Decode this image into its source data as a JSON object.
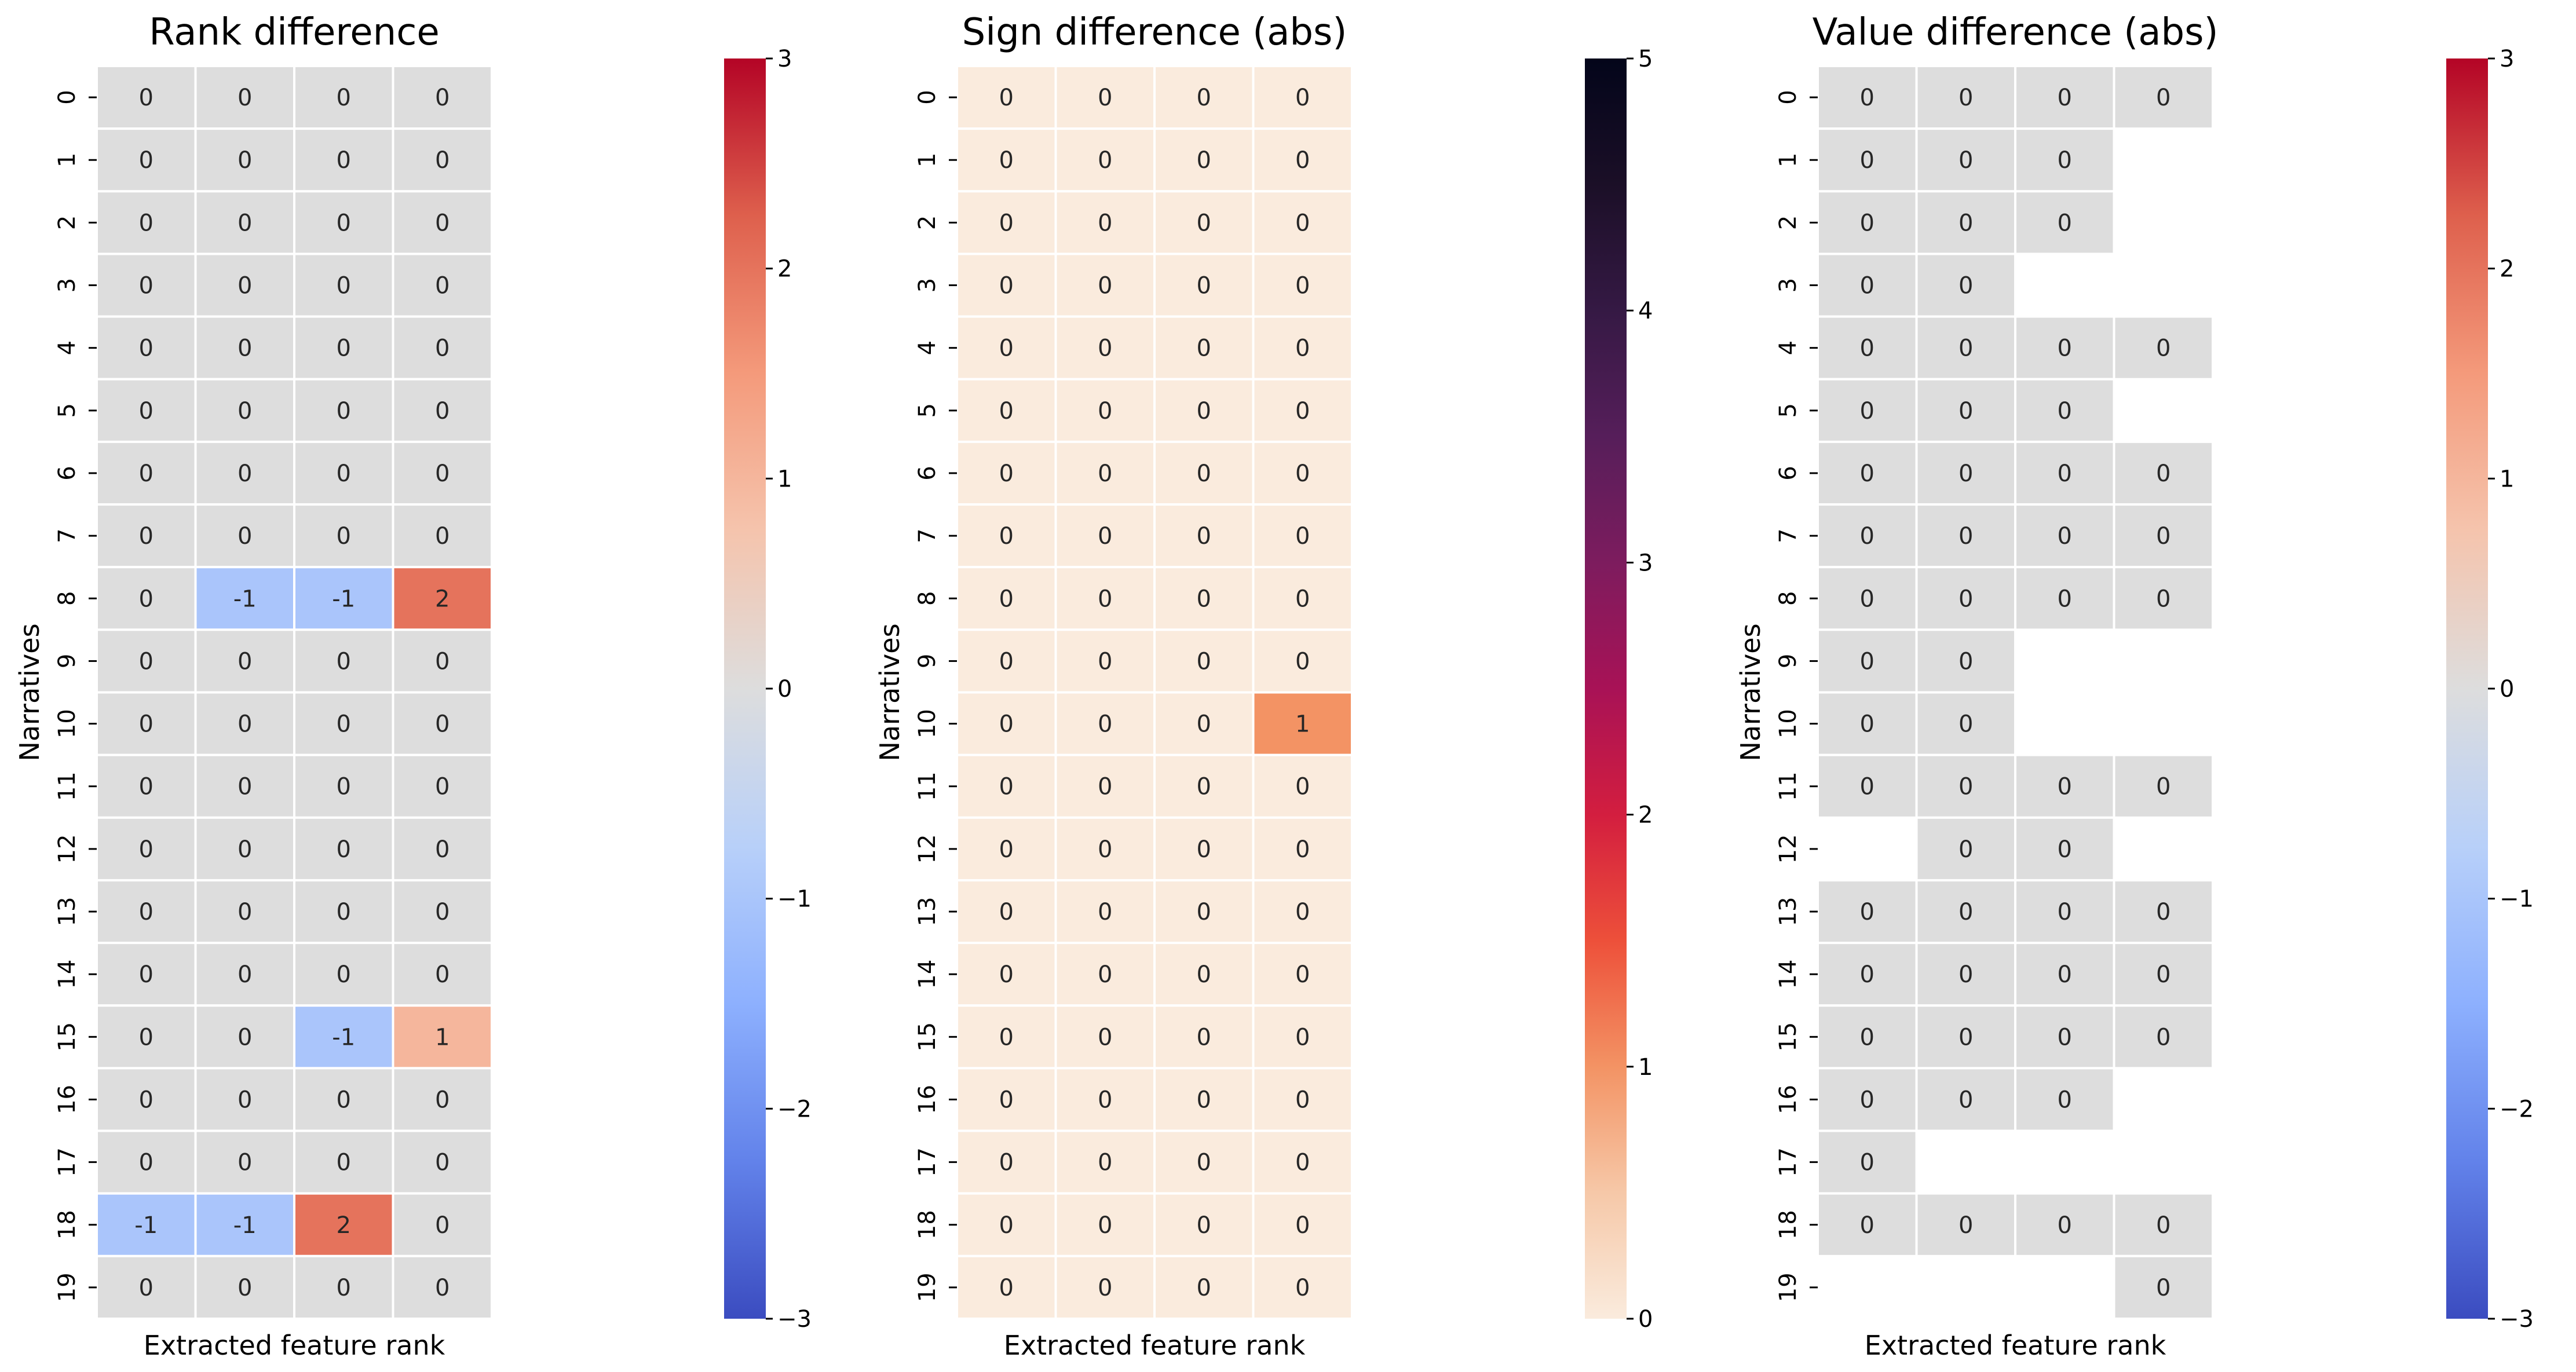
{
  "chart_data": [
    {
      "type": "heatmap",
      "title": "Rank difference",
      "xlabel": "Extracted feature rank",
      "ylabel": "Narratives",
      "xticks": [],
      "yticks": [
        "0",
        "1",
        "2",
        "3",
        "4",
        "5",
        "6",
        "7",
        "8",
        "9",
        "10",
        "11",
        "12",
        "13",
        "14",
        "15",
        "16",
        "17",
        "18",
        "19"
      ],
      "colormap": "coolwarm",
      "vmin": -3,
      "vmax": 3,
      "colorbar_ticks": [
        "−3",
        "−2",
        "−1",
        "0",
        "1",
        "2",
        "3"
      ],
      "colorbar_tick_values": [
        -3,
        -2,
        -1,
        0,
        1,
        2,
        3
      ],
      "values": [
        [
          0,
          0,
          0,
          0
        ],
        [
          0,
          0,
          0,
          0
        ],
        [
          0,
          0,
          0,
          0
        ],
        [
          0,
          0,
          0,
          0
        ],
        [
          0,
          0,
          0,
          0
        ],
        [
          0,
          0,
          0,
          0
        ],
        [
          0,
          0,
          0,
          0
        ],
        [
          0,
          0,
          0,
          0
        ],
        [
          0,
          -1,
          -1,
          2
        ],
        [
          0,
          0,
          0,
          0
        ],
        [
          0,
          0,
          0,
          0
        ],
        [
          0,
          0,
          0,
          0
        ],
        [
          0,
          0,
          0,
          0
        ],
        [
          0,
          0,
          0,
          0
        ],
        [
          0,
          0,
          0,
          0
        ],
        [
          0,
          0,
          -1,
          1
        ],
        [
          0,
          0,
          0,
          0
        ],
        [
          0,
          0,
          0,
          0
        ],
        [
          -1,
          -1,
          2,
          0
        ],
        [
          0,
          0,
          0,
          0
        ]
      ]
    },
    {
      "type": "heatmap",
      "title": "Sign difference (abs)",
      "xlabel": "Extracted feature rank",
      "ylabel": "Narratives",
      "xticks": [],
      "yticks": [
        "0",
        "1",
        "2",
        "3",
        "4",
        "5",
        "6",
        "7",
        "8",
        "9",
        "10",
        "11",
        "12",
        "13",
        "14",
        "15",
        "16",
        "17",
        "18",
        "19"
      ],
      "colormap": "rocket_r",
      "vmin": 0,
      "vmax": 5,
      "colorbar_ticks": [
        "0",
        "1",
        "2",
        "3",
        "4",
        "5"
      ],
      "colorbar_tick_values": [
        0,
        1,
        2,
        3,
        4,
        5
      ],
      "values": [
        [
          0,
          0,
          0,
          0
        ],
        [
          0,
          0,
          0,
          0
        ],
        [
          0,
          0,
          0,
          0
        ],
        [
          0,
          0,
          0,
          0
        ],
        [
          0,
          0,
          0,
          0
        ],
        [
          0,
          0,
          0,
          0
        ],
        [
          0,
          0,
          0,
          0
        ],
        [
          0,
          0,
          0,
          0
        ],
        [
          0,
          0,
          0,
          0
        ],
        [
          0,
          0,
          0,
          0
        ],
        [
          0,
          0,
          0,
          1
        ],
        [
          0,
          0,
          0,
          0
        ],
        [
          0,
          0,
          0,
          0
        ],
        [
          0,
          0,
          0,
          0
        ],
        [
          0,
          0,
          0,
          0
        ],
        [
          0,
          0,
          0,
          0
        ],
        [
          0,
          0,
          0,
          0
        ],
        [
          0,
          0,
          0,
          0
        ],
        [
          0,
          0,
          0,
          0
        ],
        [
          0,
          0,
          0,
          0
        ]
      ]
    },
    {
      "type": "heatmap",
      "title": "Value difference (abs)",
      "xlabel": "Extracted feature rank",
      "ylabel": "Narratives",
      "xticks": [],
      "yticks": [
        "0",
        "1",
        "2",
        "3",
        "4",
        "5",
        "6",
        "7",
        "8",
        "9",
        "10",
        "11",
        "12",
        "13",
        "14",
        "15",
        "16",
        "17",
        "18",
        "19"
      ],
      "colormap": "coolwarm",
      "vmin": -3,
      "vmax": 3,
      "colorbar_ticks": [
        "−3",
        "−2",
        "−1",
        "0",
        "1",
        "2",
        "3"
      ],
      "colorbar_tick_values": [
        -3,
        -2,
        -1,
        0,
        1,
        2,
        3
      ],
      "values": [
        [
          0,
          0,
          0,
          0
        ],
        [
          0,
          0,
          0,
          null
        ],
        [
          0,
          0,
          0,
          null
        ],
        [
          0,
          0,
          null,
          null
        ],
        [
          0,
          0,
          0,
          0
        ],
        [
          0,
          0,
          0,
          null
        ],
        [
          0,
          0,
          0,
          0
        ],
        [
          0,
          0,
          0,
          0
        ],
        [
          0,
          0,
          0,
          0
        ],
        [
          0,
          0,
          null,
          null
        ],
        [
          0,
          0,
          null,
          null
        ],
        [
          0,
          0,
          0,
          0
        ],
        [
          null,
          0,
          0,
          null
        ],
        [
          0,
          0,
          0,
          0
        ],
        [
          0,
          0,
          0,
          0
        ],
        [
          0,
          0,
          0,
          0
        ],
        [
          0,
          0,
          0,
          null
        ],
        [
          0,
          null,
          null,
          null
        ],
        [
          0,
          0,
          0,
          0
        ],
        [
          null,
          null,
          null,
          0
        ]
      ]
    }
  ]
}
